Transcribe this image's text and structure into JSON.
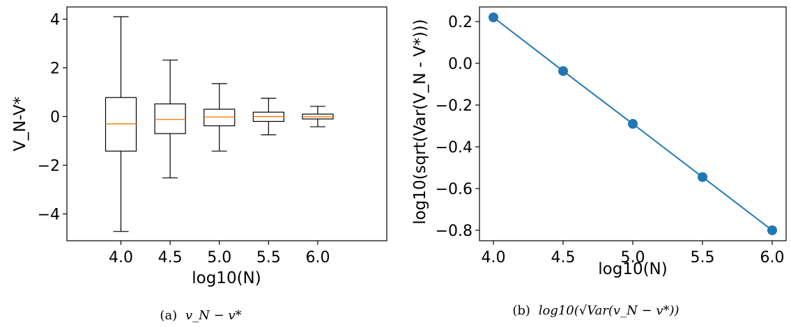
{
  "chart_data": [
    {
      "type": "box",
      "xlabel": "log10(N)",
      "ylabel": "V_N-V*",
      "categories": [
        "4.0",
        "4.5",
        "5.0",
        "5.5",
        "6.0"
      ],
      "yticks": [
        "4",
        "2",
        "0",
        "−2",
        "−4"
      ],
      "ylim": [
        -5.1,
        4.5
      ],
      "boxes": [
        {
          "label": "4.0",
          "whisker_low": -4.72,
          "q1": -1.42,
          "median": -0.3,
          "q3": 0.78,
          "whisker_high": 4.1
        },
        {
          "label": "4.5",
          "whisker_low": -2.52,
          "q1": -0.7,
          "median": -0.12,
          "q3": 0.52,
          "whisker_high": 2.32
        },
        {
          "label": "5.0",
          "whisker_low": -1.42,
          "q1": -0.38,
          "median": -0.02,
          "q3": 0.3,
          "whisker_high": 1.35
        },
        {
          "label": "5.5",
          "whisker_low": -0.75,
          "q1": -0.2,
          "median": 0.0,
          "q3": 0.18,
          "whisker_high": 0.75
        },
        {
          "label": "6.0",
          "whisker_low": -0.42,
          "q1": -0.1,
          "median": -0.01,
          "q3": 0.1,
          "whisker_high": 0.42
        }
      ],
      "box_color": "#000000",
      "median_color": "#ff7f0e",
      "caption": {
        "prefix": "(a)",
        "math": "v_N − v*"
      }
    },
    {
      "type": "line",
      "xlabel": "log10(N)",
      "ylabel": "log10(sqrt(Var(V_N - V*)))",
      "x": [
        4.0,
        4.5,
        5.0,
        5.5,
        6.0
      ],
      "y": [
        0.22,
        -0.037,
        -0.29,
        -0.545,
        -0.8
      ],
      "xticks": [
        "4.0",
        "4.5",
        "5.0",
        "5.5",
        "6.0"
      ],
      "yticks": [
        "0.2",
        "0.0",
        "−0.2",
        "−0.4",
        "−0.6",
        "−0.8"
      ],
      "xlim": [
        3.9,
        6.1
      ],
      "ylim": [
        -0.85,
        0.27
      ],
      "color": "#1f77b4",
      "caption": {
        "prefix": "(b)",
        "math": "log10(√Var(v_N − v*))"
      }
    }
  ]
}
